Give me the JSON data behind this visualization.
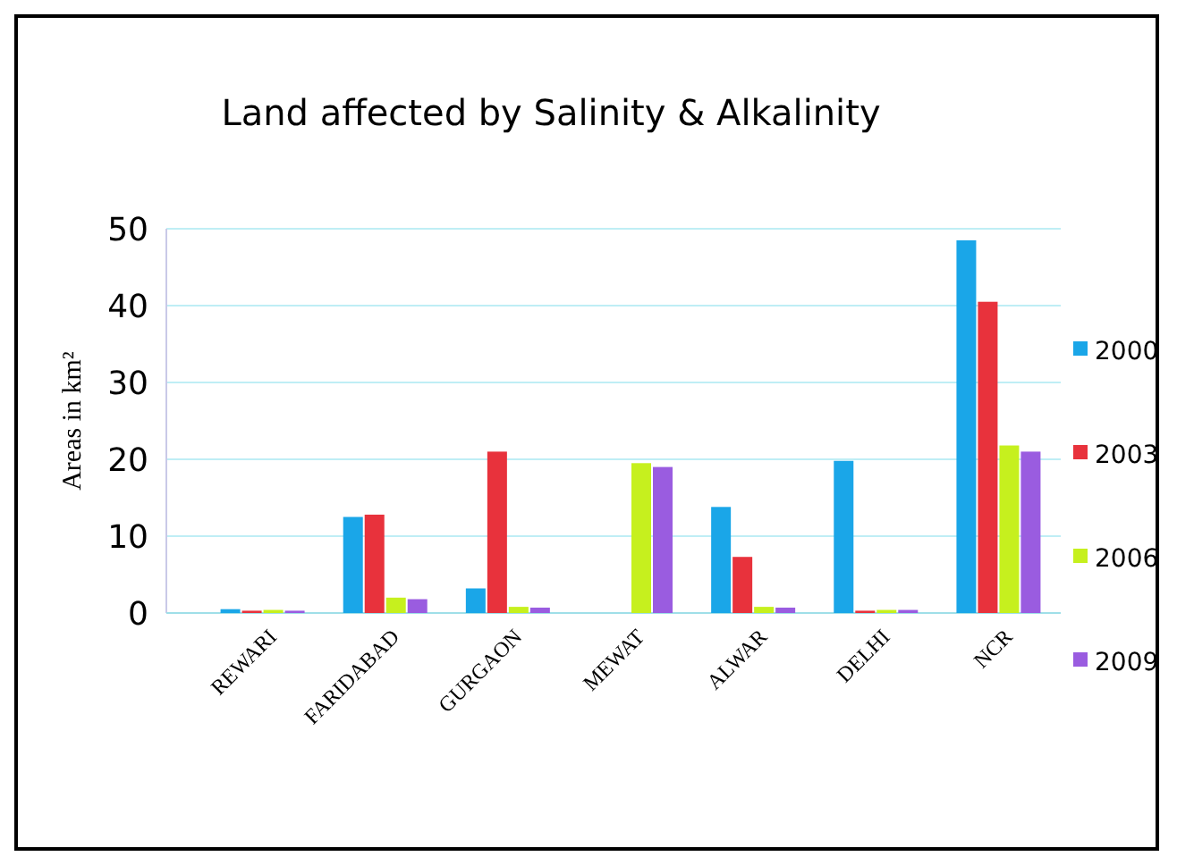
{
  "chart_data": {
    "type": "bar",
    "title": "Land affected by Salinity & Alkalinity",
    "ylabel": "Areas in km²",
    "categories": [
      "REWARI",
      "FARIDABAD",
      "GURGAON",
      "MEWAT",
      "ALWAR",
      "DELHI",
      "NCR"
    ],
    "series": [
      {
        "name": "2000",
        "color": "#1aa6e8",
        "values": [
          0.5,
          12.5,
          3.2,
          0,
          13.8,
          19.8,
          48.5
        ]
      },
      {
        "name": "2003",
        "color": "#e8323c",
        "values": [
          0.3,
          12.8,
          21,
          0,
          7.3,
          0.3,
          40.5
        ]
      },
      {
        "name": "2006",
        "color": "#c6f01e",
        "values": [
          0.4,
          2,
          0.8,
          19.5,
          0.8,
          0.4,
          21.8
        ]
      },
      {
        "name": "2009",
        "color": "#9a5ce0",
        "values": [
          0.3,
          1.8,
          0.7,
          19,
          0.7,
          0.4,
          21
        ]
      }
    ],
    "ylim": [
      0,
      50
    ],
    "yticks": [
      0,
      10,
      20,
      30,
      40,
      50
    ],
    "grid": "y",
    "legend": "right"
  }
}
